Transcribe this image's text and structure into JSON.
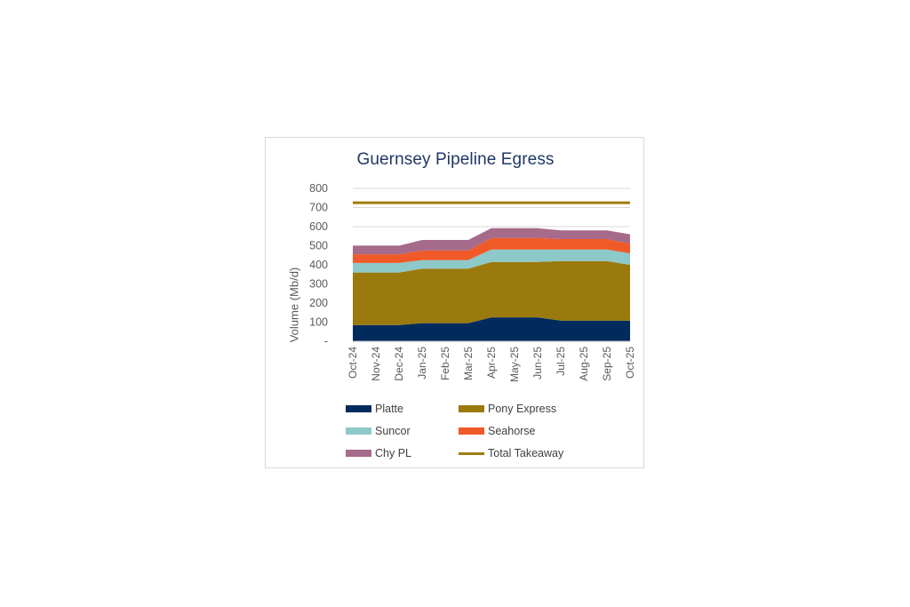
{
  "chart_data": {
    "type": "area",
    "stacked": true,
    "title": "Guernsey Pipeline Egress",
    "ylabel": "Volume (Mb/d)",
    "xlabel": "",
    "ylim": [
      0,
      800
    ],
    "yticks": [
      0,
      100,
      200,
      300,
      400,
      500,
      600,
      700,
      800
    ],
    "ytick_labels": [
      "-",
      "100",
      "200",
      "300",
      "400",
      "500",
      "600",
      "700",
      "800"
    ],
    "grid": true,
    "legend_position": "bottom",
    "categories": [
      "Oct-24",
      "Nov-24",
      "Dec-24",
      "Jan-25",
      "Feb-25",
      "Mar-25",
      "Apr-25",
      "May-25",
      "Jun-25",
      "Jul-25",
      "Aug-25",
      "Sep-25",
      "Oct-25"
    ],
    "series": [
      {
        "name": "Platte",
        "color": "#002b5c",
        "values": [
          85,
          85,
          85,
          95,
          95,
          95,
          125,
          125,
          125,
          108,
          108,
          108,
          108
        ]
      },
      {
        "name": "Pony Express",
        "color": "#9a7a0c",
        "values": [
          275,
          275,
          275,
          285,
          285,
          285,
          290,
          290,
          290,
          312,
          312,
          312,
          292
        ]
      },
      {
        "name": "Suncor",
        "color": "#8ec9c9",
        "values": [
          50,
          50,
          50,
          45,
          45,
          45,
          65,
          65,
          65,
          60,
          60,
          60,
          60
        ]
      },
      {
        "name": "Seahorse",
        "color": "#f05a28",
        "values": [
          45,
          45,
          45,
          50,
          50,
          50,
          60,
          60,
          60,
          55,
          55,
          55,
          50
        ]
      },
      {
        "name": "Chy PL",
        "color": "#a66a8a",
        "values": [
          45,
          45,
          45,
          55,
          55,
          55,
          52,
          52,
          52,
          45,
          45,
          45,
          50
        ]
      }
    ],
    "line_series": [
      {
        "name": "Total Takeaway",
        "color": "#a07d0e",
        "values": [
          725,
          725,
          725,
          725,
          725,
          725,
          725,
          725,
          725,
          725,
          725,
          725,
          725
        ]
      }
    ]
  }
}
